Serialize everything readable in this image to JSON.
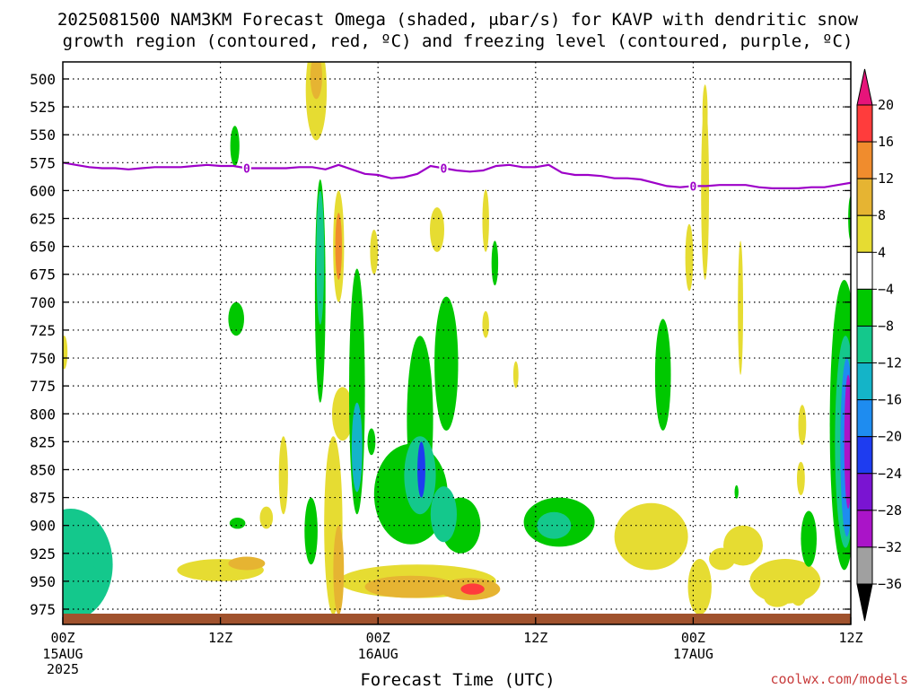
{
  "title_line1": "2025081500 NAM3KM Forecast Omega (shaded, μbar/s) for KAVP with dendritic snow",
  "title_line2": "growth region (contoured, red, ºC) and freezing level (contoured, purple, ºC)",
  "credit": "coolwx.com/models",
  "chart_data": {
    "type": "heatmap",
    "title": "2025081500 NAM3KM Forecast Omega (shaded, μbar/s) for KAVP with dendritic snow growth region (contoured, red, ºC) and freezing level (contoured, purple, ºC)",
    "xlabel": "Forecast Time (UTC)",
    "ylabel": "",
    "x_unit": "forecast hour",
    "xlim": [
      0,
      60
    ],
    "ylim": [
      990,
      485
    ],
    "y_scale": "linear, pressure decreasing upward",
    "x_ticks": [
      {
        "x": 0,
        "label": "00Z",
        "sub": [
          "15AUG",
          "2025"
        ]
      },
      {
        "x": 12,
        "label": "12Z",
        "sub": []
      },
      {
        "x": 24,
        "label": "00Z",
        "sub": [
          "16AUG"
        ]
      },
      {
        "x": 36,
        "label": "12Z",
        "sub": []
      },
      {
        "x": 48,
        "label": "00Z",
        "sub": [
          "17AUG"
        ]
      },
      {
        "x": 60,
        "label": "12Z",
        "sub": []
      }
    ],
    "y_ticks": [
      500,
      525,
      550,
      575,
      600,
      625,
      650,
      675,
      700,
      725,
      750,
      775,
      800,
      825,
      850,
      875,
      900,
      925,
      950,
      975
    ],
    "grid": true,
    "colorbar": {
      "unit": "μbar/s",
      "labels": [
        "20",
        "16",
        "12",
        "8",
        "4",
        "−4",
        "−8",
        "−12",
        "−16",
        "−20",
        "−24",
        "−28",
        "−32",
        "−36"
      ],
      "bands": [
        {
          "from": 16,
          "to": 20,
          "color": "#ff3c3c"
        },
        {
          "from": 12,
          "to": 16,
          "color": "#f08c2d"
        },
        {
          "from": 8,
          "to": 12,
          "color": "#e6b432"
        },
        {
          "from": 4,
          "to": 8,
          "color": "#e6dc32"
        },
        {
          "from": -4,
          "to": 4,
          "color": "#ffffff"
        },
        {
          "from": -8,
          "to": -4,
          "color": "#00c800"
        },
        {
          "from": -12,
          "to": -8,
          "color": "#14c88c"
        },
        {
          "from": -16,
          "to": -12,
          "color": "#14b4c8"
        },
        {
          "from": -20,
          "to": -16,
          "color": "#1e8cf0"
        },
        {
          "from": -24,
          "to": -20,
          "color": "#1e3cf0"
        },
        {
          "from": -28,
          "to": -24,
          "color": "#7a14d2"
        },
        {
          "from": -32,
          "to": -28,
          "color": "#aa14c8"
        },
        {
          "from": -36,
          "to": -32,
          "color": "#a0a0a0"
        }
      ],
      "over_color": "#e6147a",
      "under_color": "#000000"
    },
    "freezing_level": {
      "color": "#9d00c8",
      "label": "0",
      "label_x": [
        14,
        29,
        48
      ],
      "points": [
        [
          0,
          575
        ],
        [
          1,
          577
        ],
        [
          2,
          579
        ],
        [
          3,
          580
        ],
        [
          4,
          580
        ],
        [
          5,
          581
        ],
        [
          6,
          580
        ],
        [
          7,
          579
        ],
        [
          8,
          579
        ],
        [
          9,
          579
        ],
        [
          10,
          578
        ],
        [
          11,
          577
        ],
        [
          12,
          578
        ],
        [
          13,
          578
        ],
        [
          14,
          580
        ],
        [
          15,
          580
        ],
        [
          16,
          580
        ],
        [
          17,
          580
        ],
        [
          18,
          579
        ],
        [
          19,
          579
        ],
        [
          20,
          581
        ],
        [
          21,
          577
        ],
        [
          22,
          581
        ],
        [
          23,
          585
        ],
        [
          24,
          586
        ],
        [
          25,
          589
        ],
        [
          26,
          588
        ],
        [
          27,
          585
        ],
        [
          28,
          578
        ],
        [
          29,
          580
        ],
        [
          30,
          582
        ],
        [
          31,
          583
        ],
        [
          32,
          582
        ],
        [
          33,
          578
        ],
        [
          34,
          577
        ],
        [
          35,
          579
        ],
        [
          36,
          579
        ],
        [
          37,
          577
        ],
        [
          38,
          584
        ],
        [
          39,
          586
        ],
        [
          40,
          586
        ],
        [
          41,
          587
        ],
        [
          42,
          589
        ],
        [
          43,
          589
        ],
        [
          44,
          590
        ],
        [
          45,
          593
        ],
        [
          46,
          596
        ],
        [
          47,
          597
        ],
        [
          48,
          596
        ],
        [
          49,
          596
        ],
        [
          50,
          595
        ],
        [
          51,
          595
        ],
        [
          52,
          595
        ],
        [
          53,
          597
        ],
        [
          54,
          598
        ],
        [
          55,
          598
        ],
        [
          56,
          598
        ],
        [
          57,
          597
        ],
        [
          58,
          597
        ],
        [
          59,
          595
        ],
        [
          60,
          593
        ]
      ]
    },
    "surface": {
      "color": "#a0522d",
      "pressure": 990
    },
    "blobs": [
      {
        "x": 0.6,
        "p": 935,
        "rx": 3.2,
        "rp": 50,
        "v": -9
      },
      {
        "x": 1.2,
        "p": 955,
        "rx": 2.0,
        "rp": 22,
        "v": -12
      },
      {
        "x": 2.0,
        "p": 945,
        "rx": 1.4,
        "rp": 30,
        "v": -10
      },
      {
        "x": 0.1,
        "p": 745,
        "rx": 0.25,
        "rp": 15,
        "v": 4.5
      },
      {
        "x": 13.1,
        "p": 560,
        "rx": 0.35,
        "rp": 18,
        "v": -5
      },
      {
        "x": 13.2,
        "p": 715,
        "rx": 0.6,
        "rp": 15,
        "v": -5
      },
      {
        "x": 13.3,
        "p": 898,
        "rx": 0.6,
        "rp": 5,
        "v": -5
      },
      {
        "x": 15.5,
        "p": 893,
        "rx": 0.5,
        "rp": 10,
        "v": 4.5
      },
      {
        "x": 16.8,
        "p": 855,
        "rx": 0.35,
        "rp": 35,
        "v": 4.5
      },
      {
        "x": 12.0,
        "p": 940,
        "rx": 3.3,
        "rp": 10,
        "v": 5.5
      },
      {
        "x": 14.0,
        "p": 934,
        "rx": 1.4,
        "rp": 6,
        "v": 8
      },
      {
        "x": 19.3,
        "p": 510,
        "rx": 0.8,
        "rp": 45,
        "v": 5.5
      },
      {
        "x": 19.3,
        "p": 498,
        "rx": 0.45,
        "rp": 20,
        "v": 9
      },
      {
        "x": 19.6,
        "p": 690,
        "rx": 0.4,
        "rp": 100,
        "v": -7
      },
      {
        "x": 19.6,
        "p": 660,
        "rx": 0.3,
        "rp": 60,
        "v": -11
      },
      {
        "x": 18.9,
        "p": 905,
        "rx": 0.5,
        "rp": 30,
        "v": -6
      },
      {
        "x": 21.0,
        "p": 650,
        "rx": 0.42,
        "rp": 50,
        "v": 7
      },
      {
        "x": 21.0,
        "p": 650,
        "rx": 0.25,
        "rp": 30,
        "v": 13
      },
      {
        "x": 21.3,
        "p": 800,
        "rx": 0.8,
        "rp": 24,
        "v": 7
      },
      {
        "x": 20.6,
        "p": 900,
        "rx": 0.7,
        "rp": 80,
        "v": 7
      },
      {
        "x": 21.0,
        "p": 940,
        "rx": 0.4,
        "rp": 40,
        "v": 10
      },
      {
        "x": 22.4,
        "p": 780,
        "rx": 0.6,
        "rp": 110,
        "v": -7
      },
      {
        "x": 22.4,
        "p": 830,
        "rx": 0.4,
        "rp": 40,
        "v": -14
      },
      {
        "x": 23.7,
        "p": 655,
        "rx": 0.3,
        "rp": 20,
        "v": 4.5
      },
      {
        "x": 23.5,
        "p": 825,
        "rx": 0.3,
        "rp": 12,
        "v": -5
      },
      {
        "x": 26.5,
        "p": 872,
        "rx": 2.8,
        "rp": 45,
        "v": -7
      },
      {
        "x": 27.2,
        "p": 805,
        "rx": 1.0,
        "rp": 75,
        "v": -6
      },
      {
        "x": 27.2,
        "p": 855,
        "rx": 1.2,
        "rp": 35,
        "v": -12
      },
      {
        "x": 27.3,
        "p": 850,
        "rx": 0.3,
        "rp": 25,
        "v": -21
      },
      {
        "x": 29.2,
        "p": 755,
        "rx": 0.9,
        "rp": 60,
        "v": -5.5
      },
      {
        "x": 30.3,
        "p": 900,
        "rx": 1.5,
        "rp": 25,
        "v": -7
      },
      {
        "x": 29.0,
        "p": 890,
        "rx": 1.0,
        "rp": 25,
        "v": -12
      },
      {
        "x": 28.5,
        "p": 635,
        "rx": 0.55,
        "rp": 20,
        "v": 5.5
      },
      {
        "x": 32.2,
        "p": 720,
        "rx": 0.25,
        "rp": 12,
        "v": 5
      },
      {
        "x": 32.9,
        "p": 665,
        "rx": 0.25,
        "rp": 20,
        "v": -5
      },
      {
        "x": 32.2,
        "p": 627,
        "rx": 0.25,
        "rp": 28,
        "v": 4.5
      },
      {
        "x": 34.5,
        "p": 765,
        "rx": 0.2,
        "rp": 12,
        "v": 4.5
      },
      {
        "x": 27.0,
        "p": 950,
        "rx": 6.0,
        "rp": 15,
        "v": 6
      },
      {
        "x": 26.5,
        "p": 955,
        "rx": 3.5,
        "rp": 10,
        "v": 10
      },
      {
        "x": 31.0,
        "p": 957,
        "rx": 2.3,
        "rp": 10,
        "v": 11
      },
      {
        "x": 31.2,
        "p": 957,
        "rx": 0.9,
        "rp": 5,
        "v": 17
      },
      {
        "x": 37.8,
        "p": 897,
        "rx": 2.7,
        "rp": 22,
        "v": -7
      },
      {
        "x": 37.4,
        "p": 900,
        "rx": 1.3,
        "rp": 12,
        "v": -11
      },
      {
        "x": 44.8,
        "p": 910,
        "rx": 2.8,
        "rp": 30,
        "v": 5
      },
      {
        "x": 45.7,
        "p": 765,
        "rx": 0.6,
        "rp": 50,
        "v": -6
      },
      {
        "x": 47.7,
        "p": 660,
        "rx": 0.3,
        "rp": 30,
        "v": 4.5
      },
      {
        "x": 48.9,
        "p": 600,
        "rx": 0.3,
        "rp": 80,
        "v": 4.5
      },
      {
        "x": 48.9,
        "p": 530,
        "rx": 0.2,
        "rp": 25,
        "v": 4.5
      },
      {
        "x": 48.5,
        "p": 955,
        "rx": 0.9,
        "rp": 25,
        "v": 4.5
      },
      {
        "x": 50.2,
        "p": 930,
        "rx": 1.0,
        "rp": 10,
        "v": 4.5
      },
      {
        "x": 51.6,
        "p": 705,
        "rx": 0.2,
        "rp": 60,
        "v": 4.5
      },
      {
        "x": 51.3,
        "p": 870,
        "rx": 0.15,
        "rp": 6,
        "v": -5
      },
      {
        "x": 51.8,
        "p": 918,
        "rx": 1.5,
        "rp": 18,
        "v": 5
      },
      {
        "x": 55.0,
        "p": 950,
        "rx": 2.7,
        "rp": 20,
        "v": 5
      },
      {
        "x": 54.4,
        "p": 965,
        "rx": 1.0,
        "rp": 8,
        "v": 6
      },
      {
        "x": 56.3,
        "p": 810,
        "rx": 0.3,
        "rp": 18,
        "v": 4.5
      },
      {
        "x": 56.2,
        "p": 858,
        "rx": 0.3,
        "rp": 15,
        "v": 5
      },
      {
        "x": 56.0,
        "p": 962,
        "rx": 0.6,
        "rp": 10,
        "v": 4.5
      },
      {
        "x": 56.8,
        "p": 912,
        "rx": 0.6,
        "rp": 25,
        "v": -6
      },
      {
        "x": 59.5,
        "p": 810,
        "rx": 1.1,
        "rp": 130,
        "v": -7
      },
      {
        "x": 59.6,
        "p": 825,
        "rx": 0.8,
        "rp": 95,
        "v": -12
      },
      {
        "x": 59.7,
        "p": 830,
        "rx": 0.5,
        "rp": 80,
        "v": -19
      },
      {
        "x": 59.8,
        "p": 825,
        "rx": 0.3,
        "rp": 60,
        "v": -29
      },
      {
        "x": 60.0,
        "p": 625,
        "rx": 0.2,
        "rp": 20,
        "v": -5
      }
    ]
  }
}
